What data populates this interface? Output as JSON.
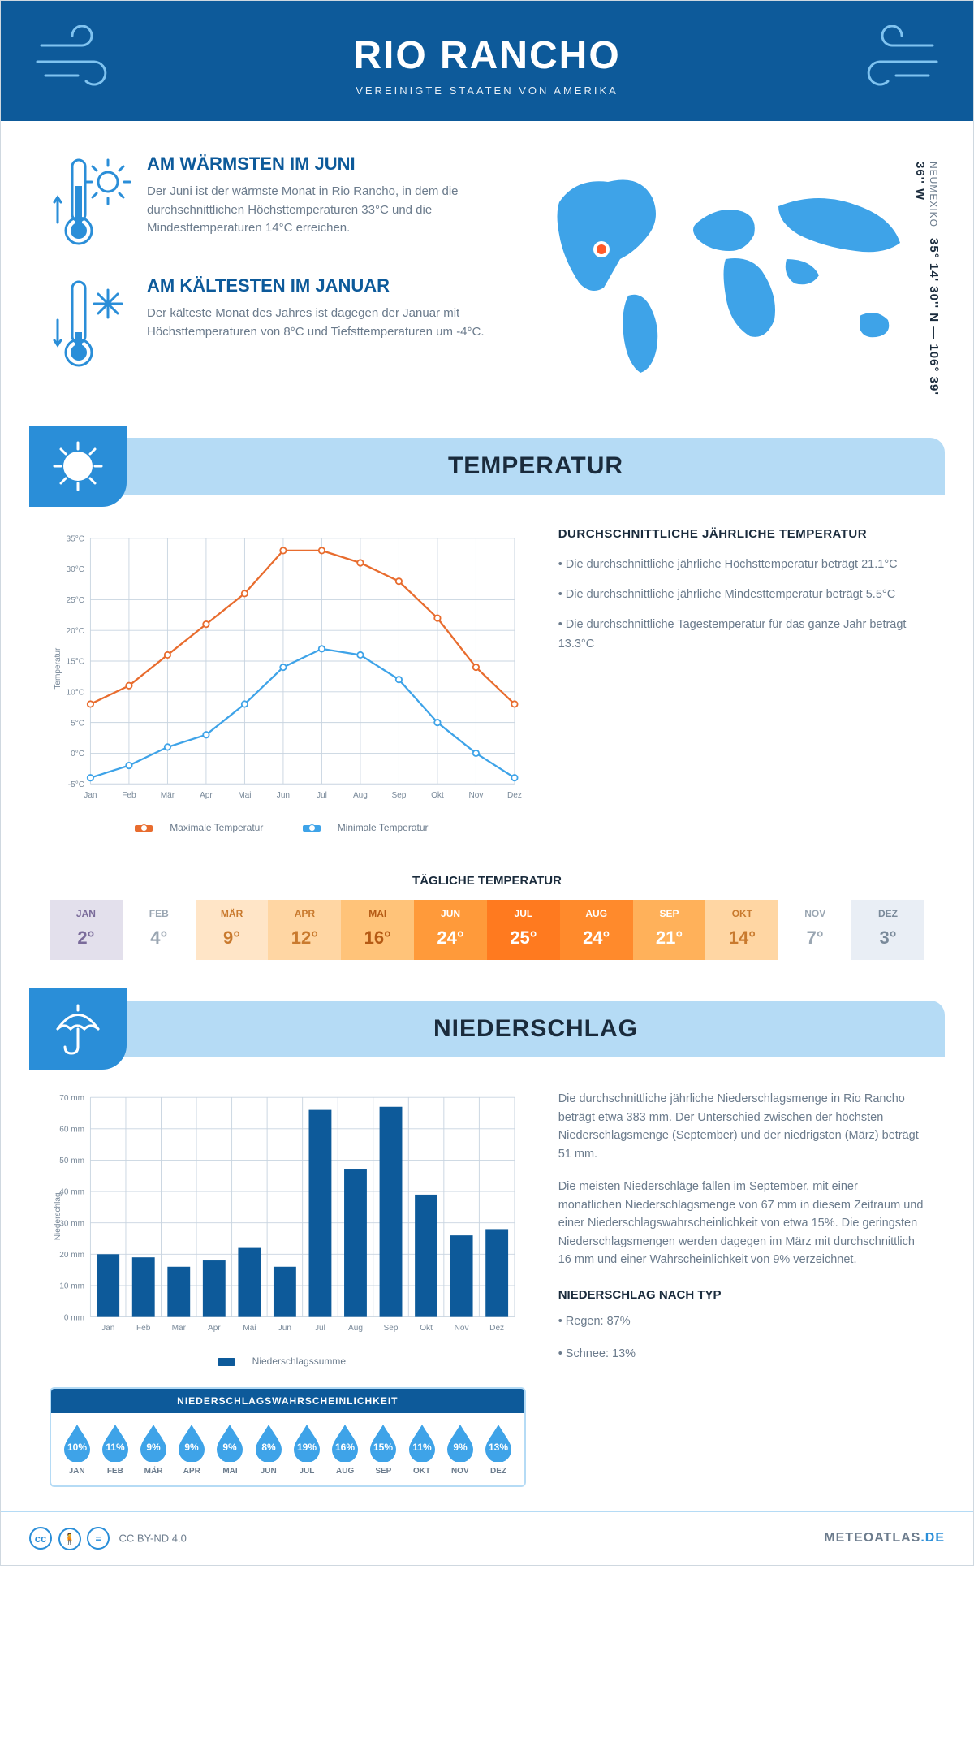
{
  "header": {
    "title": "RIO RANCHO",
    "subtitle": "VEREINIGTE STAATEN VON AMERIKA"
  },
  "coords": {
    "region": "NEUMEXIKO",
    "value": "35° 14' 30'' N — 106° 39' 36'' W"
  },
  "warm": {
    "title": "AM WÄRMSTEN IM JUNI",
    "text": "Der Juni ist der wärmste Monat in Rio Rancho, in dem die durchschnittlichen Höchsttemperaturen 33°C und die Mindesttemperaturen 14°C erreichen."
  },
  "cold": {
    "title": "AM KÄLTESTEN IM JANUAR",
    "text": "Der kälteste Monat des Jahres ist dagegen der Januar mit Höchsttemperaturen von 8°C und Tiefsttemperaturen um -4°C."
  },
  "sections": {
    "temperature": "TEMPERATUR",
    "precipitation": "NIEDERSCHLAG"
  },
  "temp_chart": {
    "type": "line",
    "y_label": "Temperatur",
    "months": [
      "Jan",
      "Feb",
      "Mär",
      "Apr",
      "Mai",
      "Jun",
      "Jul",
      "Aug",
      "Sep",
      "Okt",
      "Nov",
      "Dez"
    ],
    "max_series": [
      8,
      11,
      16,
      21,
      26,
      33,
      33,
      31,
      28,
      22,
      14,
      8
    ],
    "min_series": [
      -4,
      -2,
      1,
      3,
      8,
      14,
      17,
      16,
      12,
      5,
      0,
      -4
    ],
    "max_color": "#e86c2e",
    "min_color": "#3ea3e8",
    "grid_color": "#c8d4e0",
    "y_min": -5,
    "y_max": 35,
    "y_step": 5,
    "legend_max": "Maximale Temperatur",
    "legend_min": "Minimale Temperatur"
  },
  "temp_desc": {
    "title": "DURCHSCHNITTLICHE JÄHRLICHE TEMPERATUR",
    "b1": "• Die durchschnittliche jährliche Höchsttemperatur beträgt 21.1°C",
    "b2": "• Die durchschnittliche jährliche Mindesttemperatur beträgt 5.5°C",
    "b3": "• Die durchschnittliche Tagestemperatur für das ganze Jahr beträgt 13.3°C"
  },
  "daily": {
    "title": "TÄGLICHE TEMPERATUR",
    "months": [
      "JAN",
      "FEB",
      "MÄR",
      "APR",
      "MAI",
      "JUN",
      "JUL",
      "AUG",
      "SEP",
      "OKT",
      "NOV",
      "DEZ"
    ],
    "values": [
      "2°",
      "4°",
      "9°",
      "12°",
      "16°",
      "24°",
      "25°",
      "24°",
      "21°",
      "14°",
      "7°",
      "3°"
    ],
    "bg_colors": [
      "#e3e0ec",
      "#ffffff",
      "#ffe5c7",
      "#ffd6a3",
      "#ffc379",
      "#ff9a3a",
      "#ff7a1f",
      "#ff8a2c",
      "#ffb15a",
      "#ffd6a3",
      "#ffffff",
      "#e9eef5"
    ],
    "text_colors": [
      "#7a6b9a",
      "#9aa6b2",
      "#c97a2e",
      "#c97a2e",
      "#b55a14",
      "#ffffff",
      "#ffffff",
      "#ffffff",
      "#ffffff",
      "#c97a2e",
      "#9aa6b2",
      "#7a8a9a"
    ]
  },
  "precip_chart": {
    "type": "bar",
    "y_label": "Niederschlag",
    "months": [
      "Jan",
      "Feb",
      "Mär",
      "Apr",
      "Mai",
      "Jun",
      "Jul",
      "Aug",
      "Sep",
      "Okt",
      "Nov",
      "Dez"
    ],
    "values": [
      20,
      19,
      16,
      18,
      22,
      16,
      66,
      47,
      67,
      39,
      26,
      28
    ],
    "bar_color": "#0d5a9a",
    "grid_color": "#c8d4e0",
    "y_min": 0,
    "y_max": 70,
    "y_step": 10,
    "legend": "Niederschlagssumme"
  },
  "prob": {
    "title": "NIEDERSCHLAGSWAHRSCHEINLICHKEIT",
    "months": [
      "JAN",
      "FEB",
      "MÄR",
      "APR",
      "MAI",
      "JUN",
      "JUL",
      "AUG",
      "SEP",
      "OKT",
      "NOV",
      "DEZ"
    ],
    "values": [
      "10%",
      "11%",
      "9%",
      "9%",
      "9%",
      "8%",
      "19%",
      "16%",
      "15%",
      "11%",
      "9%",
      "13%"
    ],
    "drop_color": "#3ea3e8"
  },
  "precip_desc": {
    "p1": "Die durchschnittliche jährliche Niederschlagsmenge in Rio Rancho beträgt etwa 383 mm. Der Unterschied zwischen der höchsten Niederschlagsmenge (September) und der niedrigsten (März) beträgt 51 mm.",
    "p2": "Die meisten Niederschläge fallen im September, mit einer monatlichen Niederschlagsmenge von 67 mm in diesem Zeitraum und einer Niederschlagswahrscheinlichkeit von etwa 15%. Die geringsten Niederschlagsmengen werden dagegen im März mit durchschnittlich 16 mm und einer Wahrscheinlichkeit von 9% verzeichnet.",
    "type_title": "NIEDERSCHLAG NACH TYP",
    "type_rain": "• Regen: 87%",
    "type_snow": "• Schnee: 13%"
  },
  "footer": {
    "license": "CC BY-ND 4.0",
    "brand_a": "METEOATLAS",
    "brand_b": ".DE"
  }
}
